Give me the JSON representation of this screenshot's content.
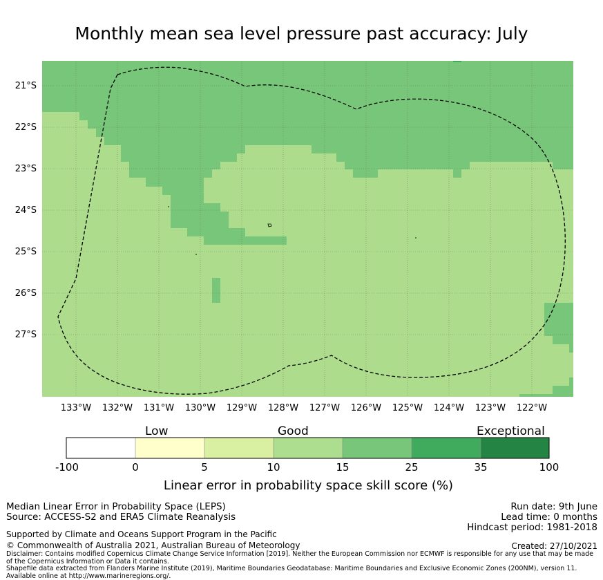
{
  "title": "Monthly mean sea level pressure past accuracy: July",
  "map": {
    "lat_labels": [
      "21°S",
      "22°S",
      "23°S",
      "24°S",
      "25°S",
      "26°S",
      "27°S"
    ],
    "lon_labels": [
      "133°W",
      "132°W",
      "131°W",
      "130°W",
      "129°W",
      "128°W",
      "127°W",
      "126°W",
      "125°W",
      "124°W",
      "123°W",
      "122°W"
    ],
    "colors": {
      "good": "#acdc8c",
      "good_plus": "#78c679",
      "boundary": "#000000"
    }
  },
  "colorbar": {
    "category_labels": [
      "Low",
      "Good",
      "Exceptional"
    ],
    "ticks": [
      "-100",
      "0",
      "5",
      "10",
      "15",
      "25",
      "35",
      "100"
    ],
    "colors": [
      "#ffffff",
      "#ffffcc",
      "#d9f0a3",
      "#addd8e",
      "#78c679",
      "#41ab5d",
      "#238443"
    ],
    "title": "Linear error in probability space skill score (%)"
  },
  "footer": {
    "left_line1": "Median Linear Error in Probability Space (LEPS)",
    "left_line2": "Source: ACCESS-S2 and ERA5 Climate Reanalysis",
    "support": "Supported by Climate and Oceans Support Program in the Pacific",
    "copyright": "© Commonwealth of Australia 2021, Australian Bureau of Meteorology",
    "disclaimer1": "Disclaimer: Contains modified Copernicus Climate Change Service Information [2019]. Neither the European Commission nor ECMWF is responsible for any use that may be made of the Copernicus Information or Data it contains.",
    "disclaimer2": "Shapefile data extracted from Flanders Marine Institute (2019), Maritime Boundaries Geodatabase: Maritime Boundaries and Exclusive Economic Zones (200NM), version 11. Available online at http://www.marineregions.org/.",
    "run_date": "Run date: 9th June",
    "lead_time": "Lead time: 0 months",
    "hindcast": "Hindcast period: 1981-2018",
    "created": "Created: 27/10/2021"
  }
}
